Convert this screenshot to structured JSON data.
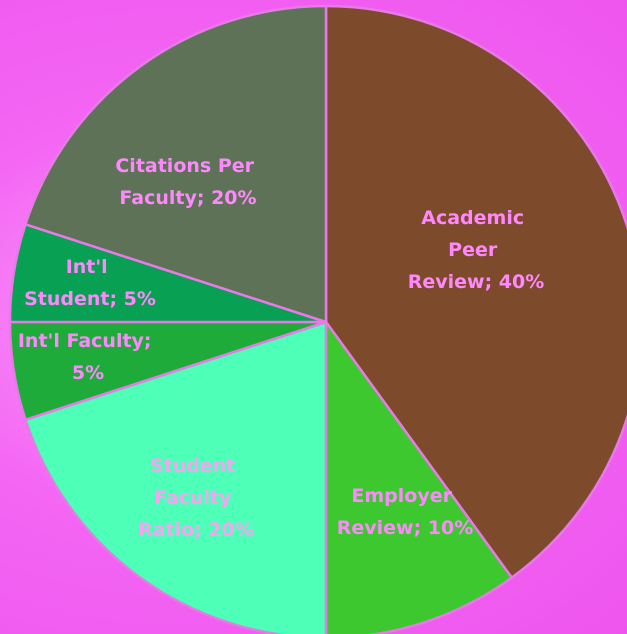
{
  "chart_data": {
    "type": "pie",
    "values": [
      40,
      10,
      20,
      5,
      5,
      20
    ],
    "value_labels": [
      "Academic Peer Review; 40%",
      "Employer Review; 10%",
      "Student Faculty Ratio; 20%",
      "Int'l Faculty; 5%",
      "Int'l Student; 5%",
      "Citations Per Faculty; 20%"
    ],
    "colors": [
      "#7e4a2c",
      "#3cc82e",
      "#4effb8",
      "#1eab3a",
      "#08a052",
      "#5e7257"
    ]
  }
}
